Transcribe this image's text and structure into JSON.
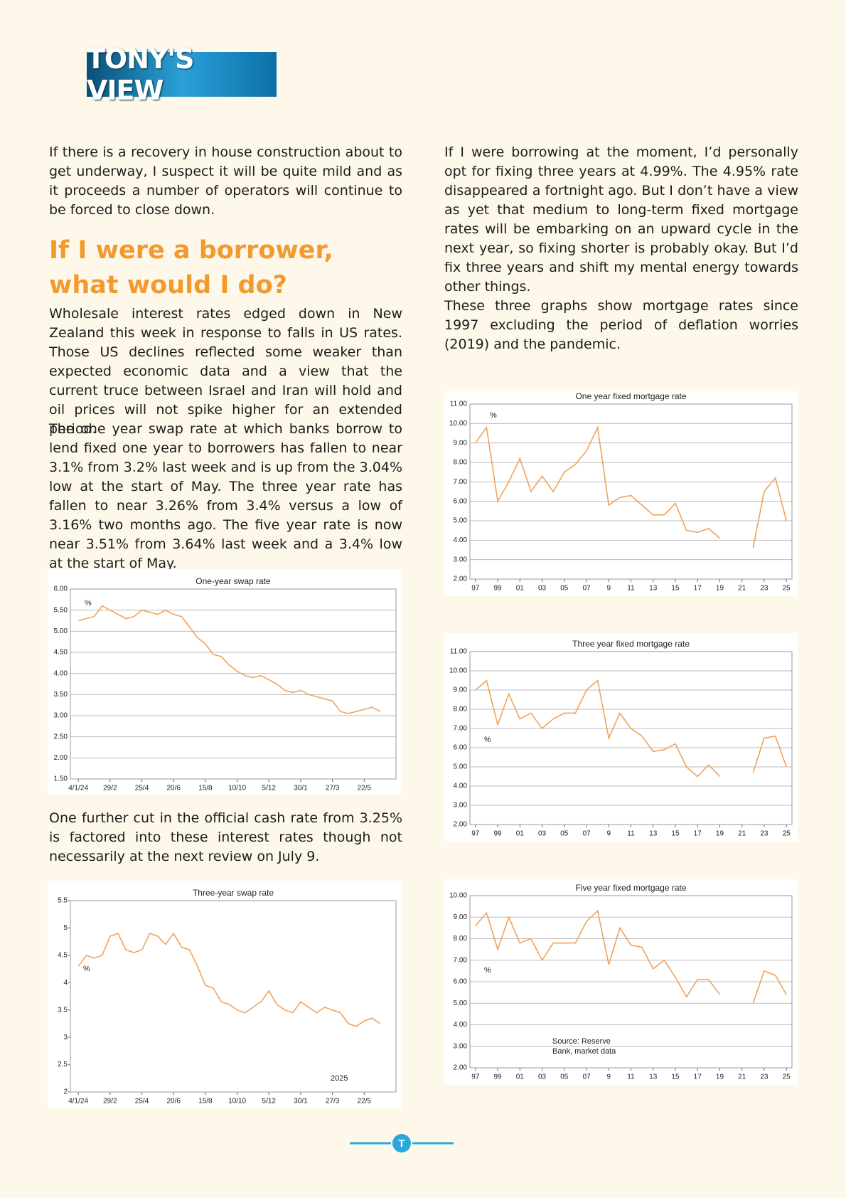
{
  "header": {
    "logo": "TONY'S VIEW"
  },
  "left": {
    "p1": "If there is a recovery in house construction about to get underway, I suspect it will be quite mild and as it proceeds a number of operators will continue to be forced to close down.",
    "heading": "If  I were a borrower, what would I do?",
    "p2": "Wholesale interest rates edged down in New Zealand this week in response to falls in US rates. Those US declines reflected some weaker than expected economic data and a view that the current truce between Israel and Iran will hold and oil prices will not spike higher for an extended period.",
    "p3": "The one year swap rate at which banks borrow to lend fixed one year to borrowers has fallen to near 3.1% from 3.2% last week and is up from the 3.04% low at the start of May. The three year rate has fallen to near 3.26% from 3.4% versus a low of 3.16% two months ago. The five year rate is now near 3.51% from 3.64% last week and a 3.4% low at the start of May.",
    "p4": "One further cut in the official cash rate from 3.25% is factored into these interest rates though not necessarily at the next review on July 9."
  },
  "right": {
    "p1": "If I were borrowing at the moment, I’d personally opt for fixing three years at 4.99%. The 4.95% rate disappeared a fortnight ago. But I don’t have a view as yet that medium to long-term fixed mortgage rates will be embarking on an upward cycle in the next year, so fixing shorter is probably okay. But I’d fix three years and shift my mental energy towards other things.",
    "p2": "These three graphs show mortgage rates since 1997 excluding the period of deflation worries (2019) and the pandemic."
  },
  "footer": {
    "icon": "T"
  },
  "chart_data": [
    {
      "type": "line",
      "title": "One-year swap rate",
      "annotations": [
        "%"
      ],
      "color": "#f0a35a",
      "grid": true,
      "x": [
        0,
        2,
        4,
        6,
        8,
        10,
        12,
        14,
        16,
        18,
        20,
        22,
        24,
        26,
        28,
        30,
        32,
        34,
        36,
        38,
        40,
        42,
        44,
        46,
        48,
        50,
        52,
        54,
        56,
        58,
        60,
        62,
        64,
        66,
        68,
        70,
        72,
        74,
        76
      ],
      "values": [
        5.25,
        5.3,
        5.35,
        5.6,
        5.5,
        5.4,
        5.3,
        5.35,
        5.5,
        5.45,
        5.4,
        5.5,
        5.4,
        5.35,
        5.1,
        4.85,
        4.7,
        4.45,
        4.4,
        4.2,
        4.05,
        3.95,
        3.9,
        3.95,
        3.85,
        3.75,
        3.6,
        3.55,
        3.6,
        3.5,
        3.45,
        3.4,
        3.35,
        3.1,
        3.05,
        3.1,
        3.15,
        3.2,
        3.1
      ],
      "xlim": [
        -2,
        80
      ],
      "xticks": [
        {
          "value": 0,
          "label": "4/1/24"
        },
        {
          "value": 8,
          "label": "29/2"
        },
        {
          "value": 16,
          "label": "25/4"
        },
        {
          "value": 24,
          "label": "20/6"
        },
        {
          "value": 32,
          "label": "15/8"
        },
        {
          "value": 40,
          "label": "10/10"
        },
        {
          "value": 48,
          "label": "5/12"
        },
        {
          "value": 56,
          "label": "30/1"
        },
        {
          "value": 64,
          "label": "27/3"
        },
        {
          "value": 72,
          "label": "22/5"
        }
      ],
      "ylim": [
        1.5,
        6
      ],
      "yticks": [
        {
          "value": 1.5,
          "label": "1.50"
        },
        {
          "value": 2,
          "label": "2.00"
        },
        {
          "value": 2.5,
          "label": "2.50"
        },
        {
          "value": 3,
          "label": "3.00"
        },
        {
          "value": 3.5,
          "label": "3.50"
        },
        {
          "value": 4,
          "label": "4.00"
        },
        {
          "value": 4.5,
          "label": "4.50"
        },
        {
          "value": 5,
          "label": "5.00"
        },
        {
          "value": 5.5,
          "label": "5.50"
        },
        {
          "value": 6,
          "label": "6.00"
        }
      ]
    },
    {
      "type": "line",
      "title": "Three-year swap rate",
      "annotations": [
        "%",
        "2025"
      ],
      "color": "#f0a35a",
      "grid": false,
      "x": [
        0,
        2,
        4,
        6,
        8,
        10,
        12,
        14,
        16,
        18,
        20,
        22,
        24,
        26,
        28,
        30,
        32,
        34,
        36,
        38,
        40,
        42,
        44,
        46,
        48,
        50,
        52,
        54,
        56,
        58,
        60,
        62,
        64,
        66,
        68,
        70,
        72,
        74,
        76
      ],
      "values": [
        4.3,
        4.5,
        4.45,
        4.5,
        4.85,
        4.9,
        4.6,
        4.55,
        4.6,
        4.9,
        4.85,
        4.7,
        4.9,
        4.65,
        4.6,
        4.3,
        3.95,
        3.9,
        3.65,
        3.6,
        3.5,
        3.45,
        3.55,
        3.65,
        3.85,
        3.6,
        3.5,
        3.45,
        3.65,
        3.55,
        3.45,
        3.55,
        3.5,
        3.45,
        3.25,
        3.2,
        3.3,
        3.35,
        3.25
      ],
      "xlim": [
        -2,
        80
      ],
      "xticks": [
        {
          "value": 0,
          "label": "4/1/24"
        },
        {
          "value": 8,
          "label": "29/2"
        },
        {
          "value": 16,
          "label": "25/4"
        },
        {
          "value": 24,
          "label": "20/6"
        },
        {
          "value": 32,
          "label": "15/8"
        },
        {
          "value": 40,
          "label": "10/10"
        },
        {
          "value": 48,
          "label": "5/12"
        },
        {
          "value": 56,
          "label": "30/1"
        },
        {
          "value": 64,
          "label": "27/3"
        },
        {
          "value": 72,
          "label": "22/5"
        }
      ],
      "ylim": [
        2,
        5.5
      ],
      "yticks": [
        2,
        2.5,
        3,
        3.5,
        4,
        4.5,
        5,
        5.5
      ]
    },
    {
      "type": "line",
      "title": "One year fixed mortgage rate",
      "annotations": [
        "%"
      ],
      "color": "#f0a35a",
      "grid": true,
      "x": [
        1997,
        1998,
        1999,
        2000,
        2001,
        2002,
        2003,
        2004,
        2005,
        2006,
        2007,
        2008,
        2009,
        2010,
        2011,
        2012,
        2013,
        2014,
        2015,
        2016,
        2017,
        2018,
        2019,
        2020,
        2021,
        2022,
        2023,
        2024,
        2025
      ],
      "values": [
        9.0,
        9.8,
        6.0,
        7.0,
        8.2,
        6.5,
        7.3,
        6.5,
        7.5,
        7.9,
        8.6,
        9.8,
        5.8,
        6.2,
        6.3,
        5.8,
        5.3,
        5.3,
        5.9,
        4.5,
        4.4,
        4.6,
        4.1,
        null,
        null,
        3.6,
        6.5,
        7.2,
        5.0
      ],
      "xlim": [
        1996.5,
        2025.5
      ],
      "xticks": [
        {
          "value": 1997,
          "label": "97"
        },
        {
          "value": 1999,
          "label": "99"
        },
        {
          "value": 2001,
          "label": "01"
        },
        {
          "value": 2003,
          "label": "03"
        },
        {
          "value": 2005,
          "label": "05"
        },
        {
          "value": 2007,
          "label": "07"
        },
        {
          "value": 2009,
          "label": "9"
        },
        {
          "value": 2011,
          "label": "11"
        },
        {
          "value": 2013,
          "label": "13"
        },
        {
          "value": 2015,
          "label": "15"
        },
        {
          "value": 2017,
          "label": "17"
        },
        {
          "value": 2019,
          "label": "19"
        },
        {
          "value": 2021,
          "label": "21"
        },
        {
          "value": 2023,
          "label": "23"
        },
        {
          "value": 2025,
          "label": "25"
        }
      ],
      "ylim": [
        2,
        11
      ],
      "yticks": [
        {
          "value": 2,
          "label": "2.00"
        },
        {
          "value": 3,
          "label": "3.00"
        },
        {
          "value": 4,
          "label": "4.00"
        },
        {
          "value": 5,
          "label": "5.00"
        },
        {
          "value": 6,
          "label": "6.00"
        },
        {
          "value": 7,
          "label": "7.00"
        },
        {
          "value": 8,
          "label": "8.00"
        },
        {
          "value": 9,
          "label": "9.00"
        },
        {
          "value": 10,
          "label": "10.00"
        },
        {
          "value": 11,
          "label": "11.00"
        }
      ]
    },
    {
      "type": "line",
      "title": "Three year fixed mortgage rate",
      "annotations": [
        "%"
      ],
      "color": "#f0a35a",
      "grid": true,
      "x": [
        1997,
        1998,
        1999,
        2000,
        2001,
        2002,
        2003,
        2004,
        2005,
        2006,
        2007,
        2008,
        2009,
        2010,
        2011,
        2012,
        2013,
        2014,
        2015,
        2016,
        2017,
        2018,
        2019,
        2020,
        2021,
        2022,
        2023,
        2024,
        2025
      ],
      "values": [
        9.0,
        9.5,
        7.2,
        8.8,
        7.5,
        7.8,
        7.0,
        7.5,
        7.8,
        7.8,
        9.0,
        9.5,
        6.5,
        7.8,
        7.0,
        6.6,
        5.8,
        5.9,
        6.2,
        5.0,
        4.5,
        5.1,
        4.5,
        null,
        null,
        4.7,
        6.5,
        6.6,
        5.0
      ],
      "xlim": [
        1996.5,
        2025.5
      ],
      "xticks": [
        {
          "value": 1997,
          "label": "97"
        },
        {
          "value": 1999,
          "label": "99"
        },
        {
          "value": 2001,
          "label": "01"
        },
        {
          "value": 2003,
          "label": "03"
        },
        {
          "value": 2005,
          "label": "05"
        },
        {
          "value": 2007,
          "label": "07"
        },
        {
          "value": 2009,
          "label": "9"
        },
        {
          "value": 2011,
          "label": "11"
        },
        {
          "value": 2013,
          "label": "13"
        },
        {
          "value": 2015,
          "label": "15"
        },
        {
          "value": 2017,
          "label": "17"
        },
        {
          "value": 2019,
          "label": "19"
        },
        {
          "value": 2021,
          "label": "21"
        },
        {
          "value": 2023,
          "label": "23"
        },
        {
          "value": 2025,
          "label": "25"
        }
      ],
      "ylim": [
        2,
        11
      ],
      "yticks": [
        {
          "value": 2,
          "label": "2.00"
        },
        {
          "value": 3,
          "label": "3.00"
        },
        {
          "value": 4,
          "label": "4.00"
        },
        {
          "value": 5,
          "label": "5.00"
        },
        {
          "value": 6,
          "label": "6.00"
        },
        {
          "value": 7,
          "label": "7.00"
        },
        {
          "value": 8,
          "label": "8.00"
        },
        {
          "value": 9,
          "label": "9.00"
        },
        {
          "value": 10,
          "label": "10.00"
        },
        {
          "value": 11,
          "label": "11.00"
        }
      ]
    },
    {
      "type": "line",
      "title": "Five year fixed mortgage rate",
      "annotations": [
        "%",
        "Source: Reserve",
        "Bank, market data"
      ],
      "color": "#f0a35a",
      "grid": true,
      "x": [
        1997,
        1998,
        1999,
        2000,
        2001,
        2002,
        2003,
        2004,
        2005,
        2006,
        2007,
        2008,
        2009,
        2010,
        2011,
        2012,
        2013,
        2014,
        2015,
        2016,
        2017,
        2018,
        2019,
        2020,
        2021,
        2022,
        2023,
        2024,
        2025
      ],
      "values": [
        8.6,
        9.2,
        7.5,
        9.0,
        7.8,
        8.0,
        7.0,
        7.8,
        7.8,
        7.8,
        8.8,
        9.3,
        6.8,
        8.5,
        7.7,
        7.6,
        6.6,
        7.0,
        6.2,
        5.3,
        6.1,
        6.1,
        5.4,
        null,
        null,
        5.0,
        6.5,
        6.3,
        5.4
      ],
      "xlim": [
        1996.5,
        2025.5
      ],
      "xticks": [
        {
          "value": 1997,
          "label": "97"
        },
        {
          "value": 1999,
          "label": "99"
        },
        {
          "value": 2001,
          "label": "01"
        },
        {
          "value": 2003,
          "label": "03"
        },
        {
          "value": 2005,
          "label": "05"
        },
        {
          "value": 2007,
          "label": "07"
        },
        {
          "value": 2009,
          "label": "9"
        },
        {
          "value": 2011,
          "label": "11"
        },
        {
          "value": 2013,
          "label": "13"
        },
        {
          "value": 2015,
          "label": "15"
        },
        {
          "value": 2017,
          "label": "17"
        },
        {
          "value": 2019,
          "label": "19"
        },
        {
          "value": 2021,
          "label": "21"
        },
        {
          "value": 2023,
          "label": "23"
        },
        {
          "value": 2025,
          "label": "25"
        }
      ],
      "ylim": [
        2,
        10
      ],
      "yticks": [
        {
          "value": 2,
          "label": "2.00"
        },
        {
          "value": 3,
          "label": "3.00"
        },
        {
          "value": 4,
          "label": "4.00"
        },
        {
          "value": 5,
          "label": "5.00"
        },
        {
          "value": 6,
          "label": "6.00"
        },
        {
          "value": 7,
          "label": "7.00"
        },
        {
          "value": 8,
          "label": "8.00"
        },
        {
          "value": 9,
          "label": "9.00"
        },
        {
          "value": 10,
          "label": "10.00"
        }
      ]
    }
  ]
}
